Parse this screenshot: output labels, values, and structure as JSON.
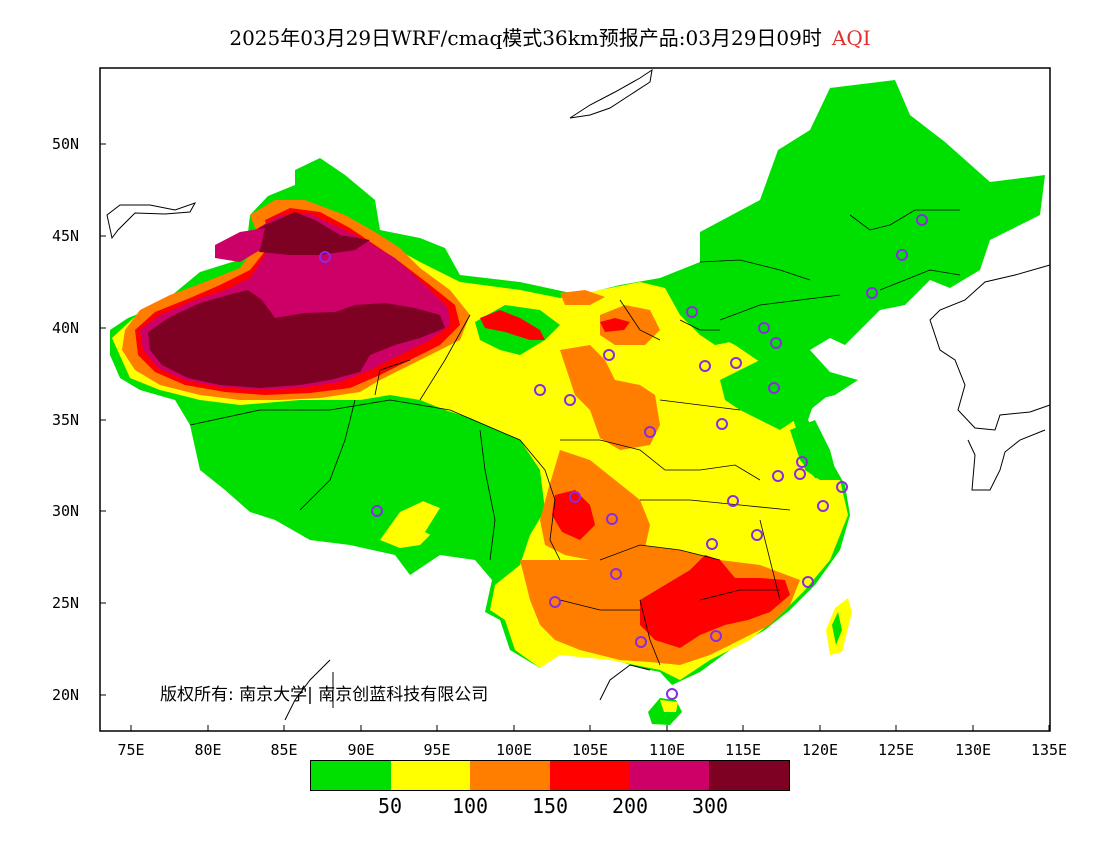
{
  "title": {
    "main": "2025年03月29日WRF/cmaq模式36km预报产品:03月29日09时",
    "product": "AQI"
  },
  "axes": {
    "y_ticks": [
      "50N",
      "45N",
      "40N",
      "35N",
      "30N",
      "25N",
      "20N"
    ],
    "x_ticks": [
      "75E",
      "80E",
      "85E",
      "90E",
      "95E",
      "100E",
      "105E",
      "110E",
      "115E",
      "120E",
      "125E",
      "130E",
      "135E"
    ]
  },
  "copyright": "版权所有: 南京大学| 南京创蓝科技有限公司",
  "legend": {
    "colors": [
      "#00e000",
      "#ffff00",
      "#ff7e00",
      "#ff0000",
      "#cc0066",
      "#7e0023"
    ],
    "labels": [
      "50",
      "100",
      "150",
      "200",
      "300"
    ]
  },
  "colors": {
    "good": "#00e000",
    "moderate": "#ffff00",
    "usg": "#ff7e00",
    "unhealthy": "#ff0000",
    "very_unhealthy": "#cc0066",
    "hazardous": "#7e0023",
    "station_marker": "#8a2be2"
  }
}
